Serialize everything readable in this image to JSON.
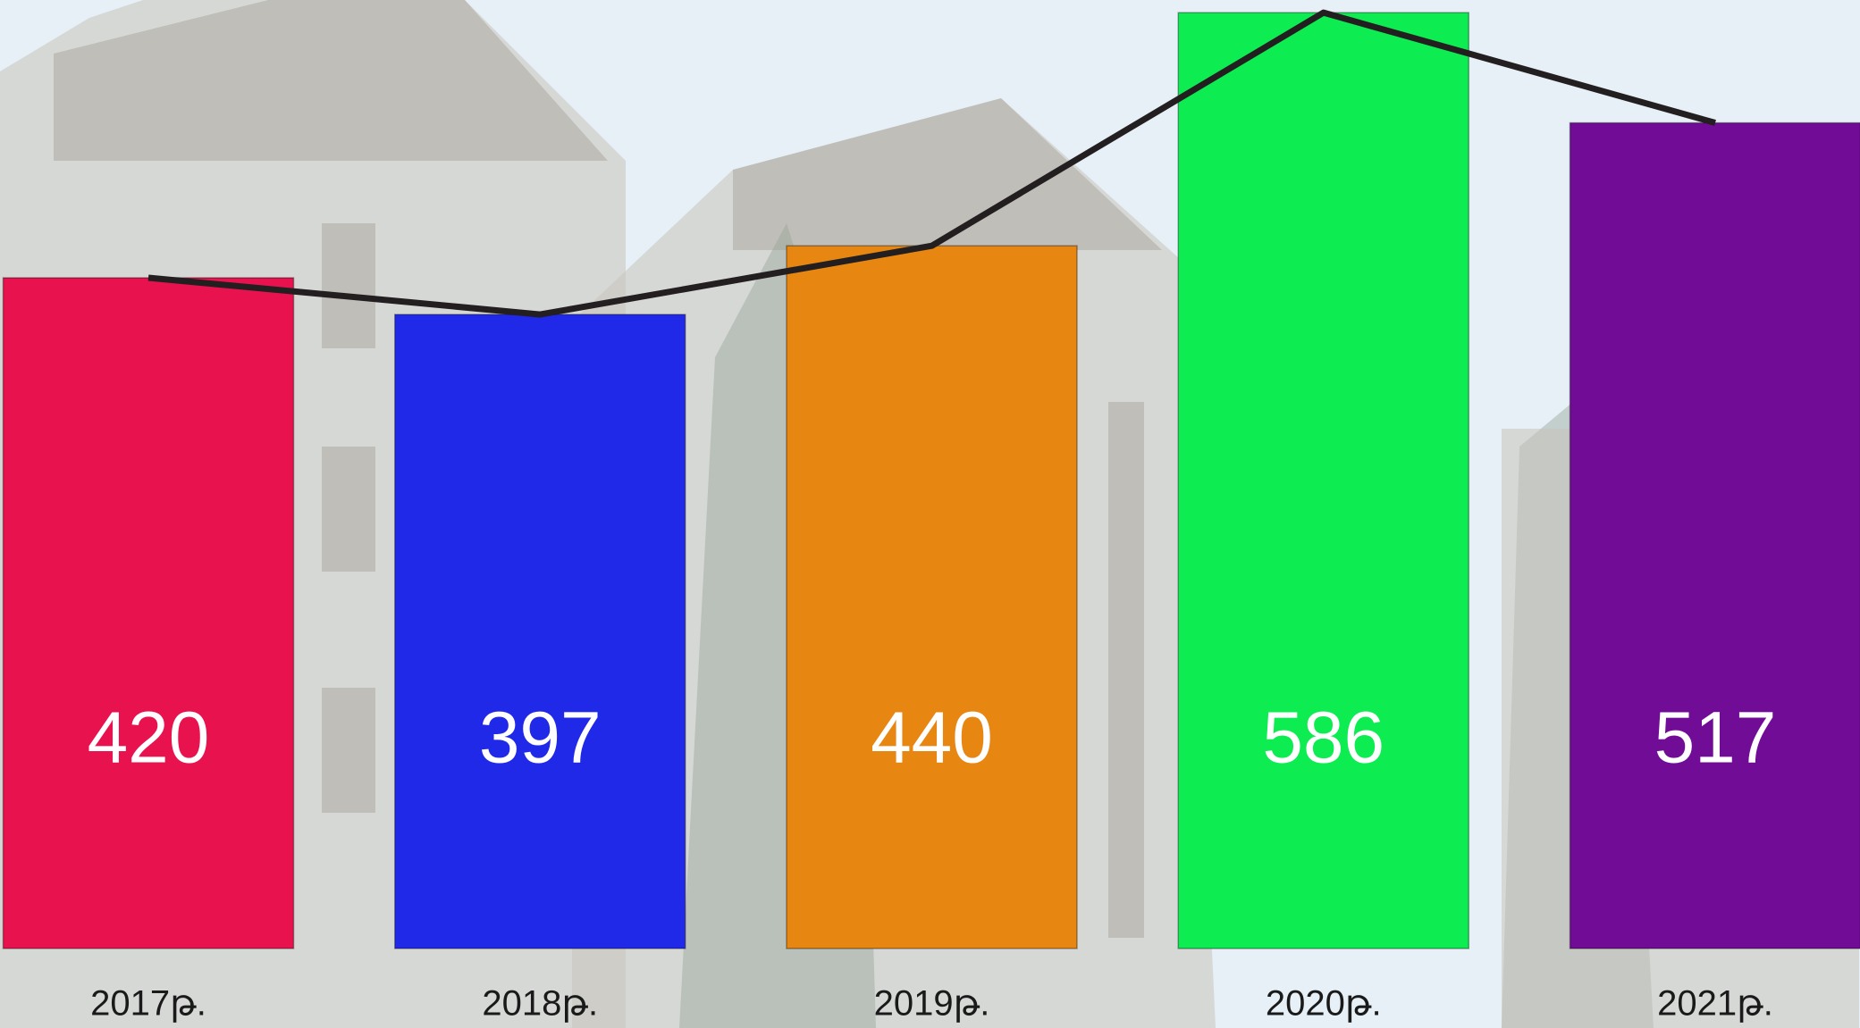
{
  "chart_data": {
    "type": "bar",
    "categories": [
      "2017թ.",
      "2018թ.",
      "2019թ.",
      "2020թ.",
      "2021թ."
    ],
    "values": [
      420,
      397,
      440,
      586,
      517
    ],
    "colors": [
      "#e8124e",
      "#2029e8",
      "#e88612",
      "#0ded52",
      "#710c96"
    ],
    "line_color": "#231f20",
    "ylim": [
      0,
      590
    ]
  }
}
